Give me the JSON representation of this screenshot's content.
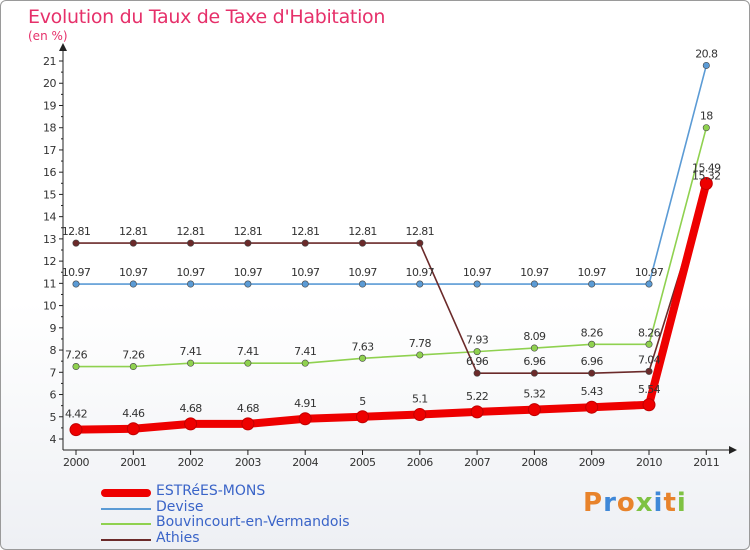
{
  "title": "Evolution du Taux de Taxe d'Habitation",
  "unit": "(en %)",
  "logo": {
    "text": "Proxiti",
    "colors": [
      "#e8832b",
      "#3f88d8",
      "#e8832b",
      "#7fc242",
      "#3f88d8",
      "#e8832b",
      "#7fc242"
    ]
  },
  "chart_data": {
    "type": "line",
    "title": "Evolution du Taux de Taxe d'Habitation",
    "ylabel": "(en %)",
    "xlabel": "",
    "x": [
      "2000",
      "2001",
      "2002",
      "2003",
      "2004",
      "2005",
      "2006",
      "2007",
      "2008",
      "2009",
      "2010",
      "2011"
    ],
    "ylim": [
      4,
      21
    ],
    "yticks": [
      "4",
      "5",
      "6",
      "7",
      "8",
      "9",
      "10",
      "11",
      "12",
      "13",
      "14",
      "15",
      "16",
      "17",
      "18",
      "19",
      "20",
      "21"
    ],
    "grid": false,
    "legend_position": "bottom-left",
    "series": [
      {
        "name": "ESTRéES-MONS",
        "color": "#ee0000",
        "emphasis": true,
        "values": [
          4.42,
          4.46,
          4.68,
          4.68,
          4.91,
          5,
          5.1,
          5.22,
          5.32,
          5.43,
          5.54,
          15.49
        ],
        "labels": [
          "4.42",
          "4.46",
          "4.68",
          "4.68",
          "4.91",
          "5",
          "5.1",
          "5.22",
          "5.32",
          "5.43",
          "5.54",
          "15.49"
        ]
      },
      {
        "name": "Devise",
        "color": "#5b9bd5",
        "emphasis": false,
        "values": [
          10.97,
          10.97,
          10.97,
          10.97,
          10.97,
          10.97,
          10.97,
          10.97,
          10.97,
          10.97,
          10.97,
          20.8
        ],
        "labels": [
          "10.97",
          "10.97",
          "10.97",
          "10.97",
          "10.97",
          "10.97",
          "10.97",
          "10.97",
          "10.97",
          "10.97",
          "10.97",
          "20.8"
        ]
      },
      {
        "name": "Bouvincourt-en-Vermandois",
        "color": "#8fd14f",
        "emphasis": false,
        "values": [
          7.26,
          7.26,
          7.41,
          7.41,
          7.41,
          7.63,
          7.78,
          7.93,
          8.09,
          8.26,
          8.26,
          18
        ],
        "labels": [
          "7.26",
          "7.26",
          "7.41",
          "7.41",
          "7.41",
          "7.63",
          "7.78",
          "7.93",
          "8.09",
          "8.26",
          "8.26",
          "18"
        ]
      },
      {
        "name": "Athies",
        "color": "#6b2a2a",
        "emphasis": false,
        "values": [
          12.81,
          12.81,
          12.81,
          12.81,
          12.81,
          12.81,
          12.81,
          6.96,
          6.96,
          6.96,
          7.04,
          15.32
        ],
        "labels": [
          "12.81",
          "12.81",
          "12.81",
          "12.81",
          "12.81",
          "12.81",
          "12.81",
          "6.96",
          "6.96",
          "6.96",
          "7.04",
          "15.32"
        ]
      }
    ]
  }
}
